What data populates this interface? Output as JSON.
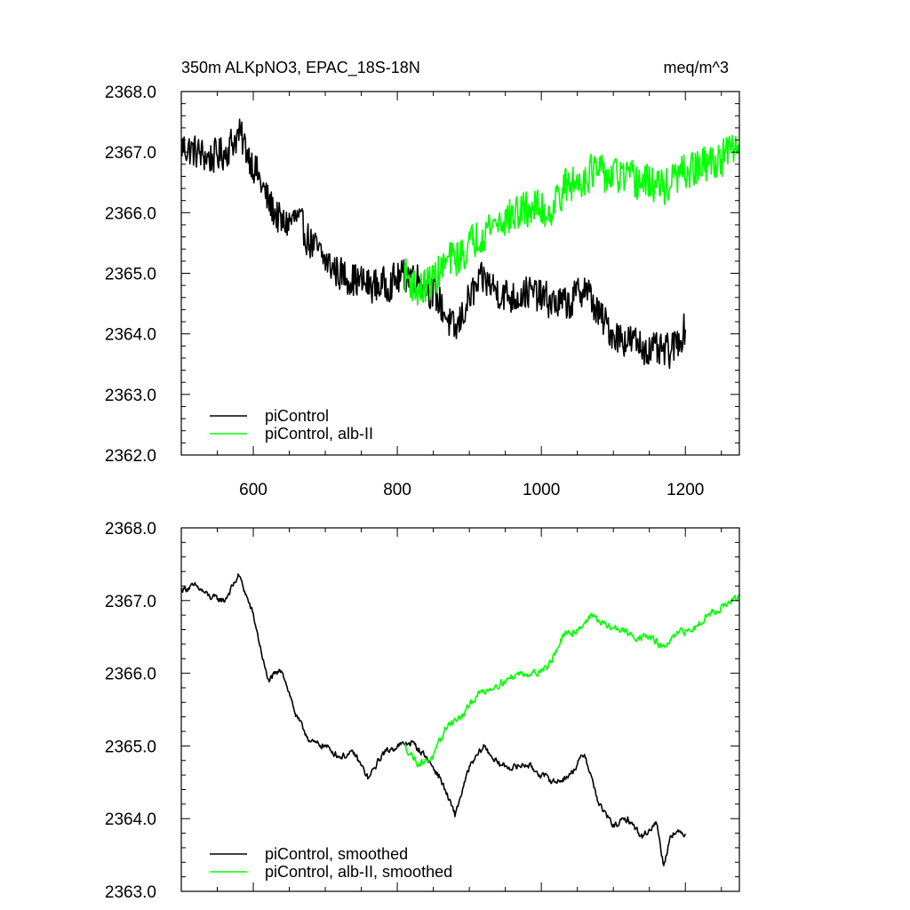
{
  "header": {
    "left_title": "350m ALKpNO3, EPAC_18S-18N",
    "right_title": "meq/m^3"
  },
  "colors": {
    "piControl": "#000000",
    "alb_II": "#00ff00",
    "axes": "#000000",
    "background": "#ffffff"
  },
  "chart_data": [
    {
      "type": "line",
      "title": "350m ALKpNO3, EPAC_18S-18N",
      "units": "meq/m^3",
      "xlabel": "",
      "ylabel": "",
      "xlim": [
        500,
        1275
      ],
      "ylim": [
        2362.0,
        2368.0
      ],
      "xticks": [
        600,
        800,
        1000,
        1200
      ],
      "xtick_labels": [
        "600",
        "800",
        "1000",
        "1200"
      ],
      "yticks": [
        2362.0,
        2363.0,
        2364.0,
        2365.0,
        2366.0,
        2367.0,
        2368.0
      ],
      "ytick_labels": [
        "2362.0",
        "2363.0",
        "2364.0",
        "2365.0",
        "2366.0",
        "2367.0",
        "2368.0"
      ],
      "grid": false,
      "legend_position": "bottom-left",
      "series": [
        {
          "name": "piControl",
          "color": "#000000",
          "x": [
            500,
            520,
            540,
            560,
            580,
            600,
            620,
            640,
            660,
            680,
            700,
            720,
            740,
            760,
            780,
            800,
            820,
            840,
            860,
            880,
            900,
            920,
            940,
            960,
            980,
            1000,
            1020,
            1040,
            1060,
            1080,
            1100,
            1120,
            1140,
            1160,
            1180,
            1200
          ],
          "y": [
            2367.1,
            2367.0,
            2366.9,
            2367.0,
            2367.3,
            2366.8,
            2366.2,
            2365.8,
            2365.9,
            2365.5,
            2365.2,
            2365.0,
            2364.9,
            2364.8,
            2364.8,
            2364.9,
            2365.0,
            2364.8,
            2364.5,
            2364.0,
            2364.6,
            2364.9,
            2364.7,
            2364.6,
            2364.7,
            2364.6,
            2364.5,
            2364.5,
            2364.8,
            2364.3,
            2364.0,
            2363.9,
            2363.8,
            2363.7,
            2363.7,
            2364.1
          ],
          "noise": 0.28
        },
        {
          "name": "piControl, alb-II",
          "color": "#00ff00",
          "x": [
            810,
            830,
            850,
            870,
            890,
            910,
            930,
            950,
            970,
            990,
            1010,
            1030,
            1050,
            1070,
            1090,
            1110,
            1130,
            1150,
            1170,
            1190,
            1210,
            1230,
            1250,
            1275
          ],
          "y": [
            2365.0,
            2364.7,
            2364.9,
            2365.2,
            2365.3,
            2365.6,
            2365.8,
            2365.9,
            2366.0,
            2366.1,
            2366.0,
            2366.4,
            2366.5,
            2366.7,
            2366.6,
            2366.6,
            2366.5,
            2366.5,
            2366.4,
            2366.6,
            2366.7,
            2366.8,
            2366.9,
            2367.1
          ],
          "noise": 0.3
        }
      ]
    },
    {
      "type": "line",
      "title": "",
      "xlabel": "",
      "ylabel": "",
      "xlim": [
        500,
        1275
      ],
      "ylim": [
        2363.0,
        2368.0
      ],
      "xticks": [
        600,
        800,
        1000,
        1200
      ],
      "xtick_labels": [],
      "yticks": [
        2363.0,
        2364.0,
        2365.0,
        2366.0,
        2367.0,
        2368.0
      ],
      "ytick_labels": [
        "2363.0",
        "2364.0",
        "2365.0",
        "2366.0",
        "2367.0",
        "2368.0"
      ],
      "grid": false,
      "legend_position": "bottom-left",
      "series": [
        {
          "name": "piControl, smoothed",
          "color": "#000000",
          "x": [
            500,
            520,
            540,
            560,
            580,
            600,
            620,
            640,
            660,
            680,
            700,
            720,
            740,
            760,
            780,
            800,
            820,
            840,
            860,
            880,
            900,
            920,
            940,
            960,
            980,
            1000,
            1020,
            1040,
            1060,
            1080,
            1100,
            1120,
            1140,
            1160,
            1170,
            1180,
            1200
          ],
          "y": [
            2367.15,
            2367.2,
            2367.05,
            2367.0,
            2367.35,
            2366.8,
            2365.9,
            2366.05,
            2365.4,
            2365.05,
            2365.0,
            2364.85,
            2364.9,
            2364.55,
            2364.9,
            2365.0,
            2365.05,
            2364.85,
            2364.55,
            2364.05,
            2364.7,
            2365.0,
            2364.75,
            2364.7,
            2364.75,
            2364.6,
            2364.5,
            2364.6,
            2364.9,
            2364.2,
            2363.9,
            2364.0,
            2363.75,
            2363.95,
            2363.35,
            2363.8,
            2363.8
          ],
          "noise": 0.07
        },
        {
          "name": "piControl, alb-II, smoothed",
          "color": "#00ff00",
          "x": [
            810,
            830,
            850,
            870,
            890,
            910,
            930,
            950,
            970,
            990,
            1010,
            1030,
            1050,
            1070,
            1090,
            1110,
            1130,
            1150,
            1170,
            1190,
            1210,
            1230,
            1250,
            1275
          ],
          "y": [
            2365.0,
            2364.75,
            2364.85,
            2365.3,
            2365.4,
            2365.7,
            2365.8,
            2365.9,
            2366.0,
            2366.0,
            2366.1,
            2366.5,
            2366.6,
            2366.8,
            2366.65,
            2366.6,
            2366.5,
            2366.5,
            2366.35,
            2366.55,
            2366.6,
            2366.8,
            2366.9,
            2367.05
          ],
          "noise": 0.08
        }
      ]
    }
  ]
}
